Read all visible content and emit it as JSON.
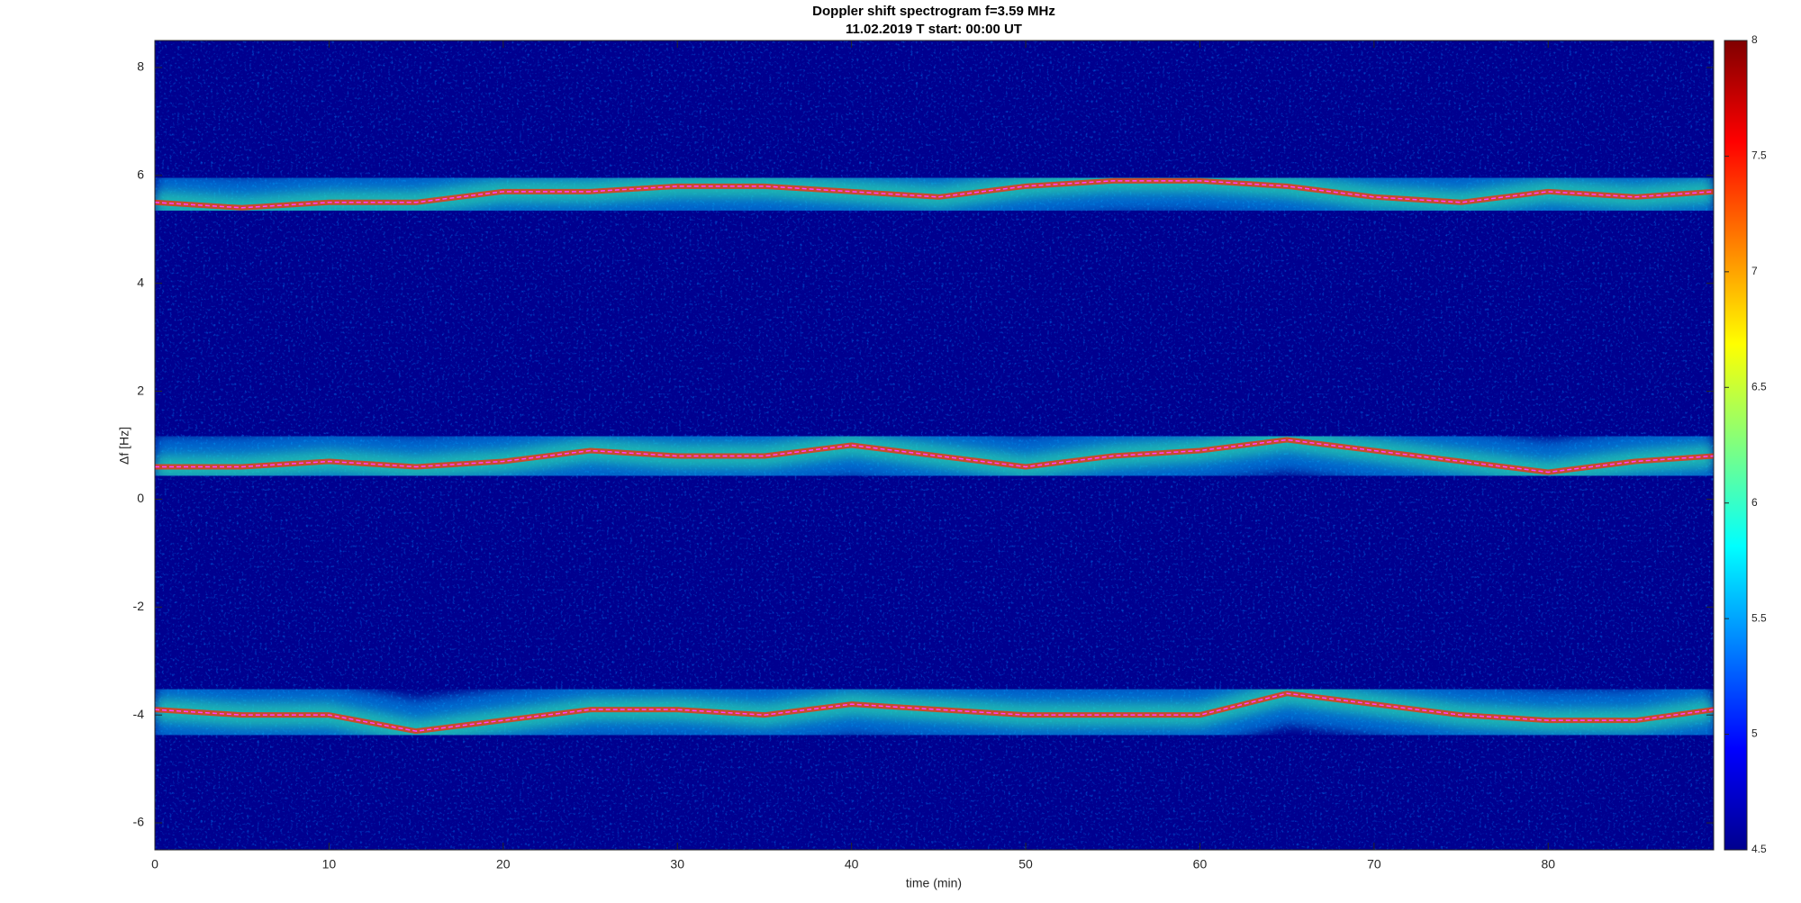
{
  "chart_data": {
    "type": "spectrogram",
    "title": "Doppler shift spectrogram f=3.59 MHz",
    "subtitle": "11.02.2019   T start: 00:00 UT",
    "xlabel": "time (min)",
    "ylabel": "Δf [Hz]",
    "xlim": [
      0,
      89.5
    ],
    "xticks": [
      0,
      10,
      20,
      30,
      40,
      50,
      60,
      70,
      80
    ],
    "ylim": [
      -6.5,
      8.5
    ],
    "yticks": [
      -6,
      -4,
      -2,
      0,
      2,
      4,
      6,
      8
    ],
    "clim": [
      4.5,
      8
    ],
    "cticks": [
      4.5,
      5,
      5.5,
      6,
      6.5,
      7,
      7.5,
      8
    ],
    "x": [
      0,
      5,
      10,
      15,
      20,
      25,
      30,
      35,
      40,
      45,
      50,
      55,
      60,
      65,
      70,
      75,
      80,
      85,
      89.5
    ],
    "series": [
      {
        "color": "#ff40ff",
        "values": [
          5.5,
          5.4,
          5.5,
          5.5,
          5.7,
          5.7,
          5.8,
          5.8,
          5.7,
          5.6,
          5.8,
          5.9,
          5.9,
          5.8,
          5.6,
          5.5,
          5.7,
          5.6,
          5.7
        ]
      },
      {
        "color": "#ff40ff",
        "values": [
          0.6,
          0.6,
          0.7,
          0.6,
          0.7,
          0.9,
          0.8,
          0.8,
          1.0,
          0.8,
          0.6,
          0.8,
          0.9,
          1.1,
          0.9,
          0.7,
          0.5,
          0.7,
          0.8
        ]
      },
      {
        "color": "#ff40ff",
        "values": [
          -3.9,
          -4.0,
          -4.0,
          -4.3,
          -4.1,
          -3.9,
          -3.9,
          -4.0,
          -3.8,
          -3.9,
          -4.0,
          -4.0,
          -4.0,
          -3.6,
          -3.8,
          -4.0,
          -4.1,
          -4.1,
          -3.9
        ]
      }
    ]
  }
}
